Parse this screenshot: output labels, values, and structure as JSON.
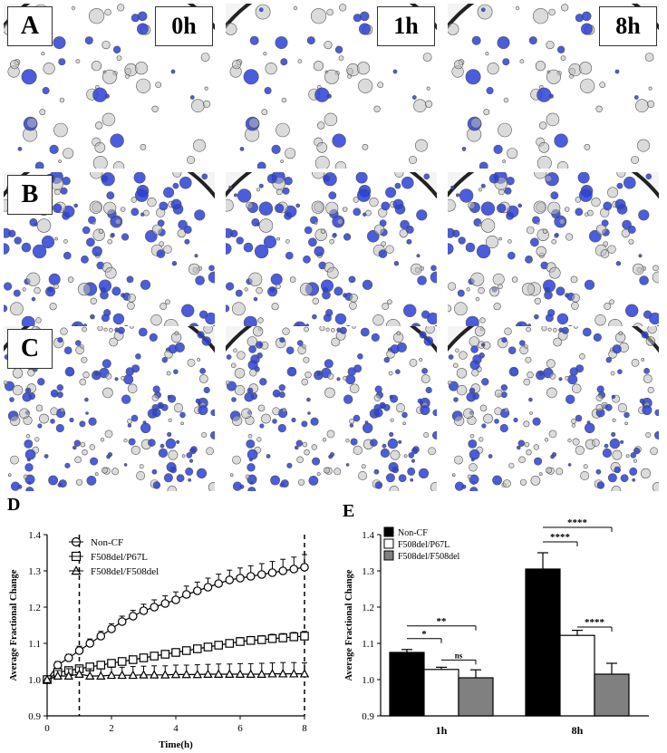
{
  "microscopy": {
    "rows": [
      {
        "label": "A",
        "dots": "sparse"
      },
      {
        "label": "B",
        "dots": "dense"
      },
      {
        "label": "C",
        "dots": "small"
      }
    ],
    "time_labels": [
      "0h",
      "1h",
      "8h"
    ],
    "stain_color": "#2b3fd6"
  },
  "panel_d": {
    "letter": "D"
  },
  "panel_e": {
    "letter": "E"
  },
  "chart_data": [
    {
      "type": "line",
      "ylabel": "Average Fractional  Change",
      "xlabel": "Time(h)",
      "xlim": [
        0,
        8
      ],
      "ylim": [
        0.9,
        1.4
      ],
      "xticks": [
        "0",
        "2",
        "4",
        "6",
        "8"
      ],
      "yticks": [
        "0.9",
        "1.0",
        "1.1",
        "1.2",
        "1.3",
        "1.4"
      ],
      "vlines": [
        1,
        8
      ],
      "legend_position": "top-left",
      "x": [
        0,
        0.33,
        0.67,
        1,
        1.33,
        1.67,
        2,
        2.33,
        2.67,
        3,
        3.33,
        3.67,
        4,
        4.33,
        4.67,
        5,
        5.33,
        5.67,
        6,
        6.33,
        6.67,
        7,
        7.33,
        7.67,
        8
      ],
      "series": [
        {
          "name": "Non-CF",
          "marker": "circle",
          "values": [
            1.0,
            1.04,
            1.06,
            1.08,
            1.1,
            1.12,
            1.14,
            1.16,
            1.175,
            1.19,
            1.2,
            1.21,
            1.22,
            1.235,
            1.245,
            1.255,
            1.265,
            1.275,
            1.28,
            1.285,
            1.29,
            1.295,
            1.3,
            1.305,
            1.31
          ],
          "errors": [
            0.005,
            0.01,
            0.01,
            0.012,
            0.012,
            0.013,
            0.014,
            0.015,
            0.016,
            0.018,
            0.02,
            0.021,
            0.022,
            0.023,
            0.024,
            0.025,
            0.026,
            0.027,
            0.028,
            0.029,
            0.03,
            0.031,
            0.032,
            0.033,
            0.035
          ]
        },
        {
          "name": "F508del/P67L",
          "marker": "square",
          "values": [
            1.0,
            1.02,
            1.025,
            1.03,
            1.035,
            1.04,
            1.045,
            1.05,
            1.055,
            1.06,
            1.065,
            1.07,
            1.075,
            1.08,
            1.085,
            1.09,
            1.095,
            1.1,
            1.105,
            1.108,
            1.11,
            1.113,
            1.115,
            1.118,
            1.12
          ],
          "errors": [
            0.003,
            0.005,
            0.005,
            0.006,
            0.006,
            0.006,
            0.007,
            0.007,
            0.007,
            0.008,
            0.008,
            0.008,
            0.009,
            0.009,
            0.009,
            0.01,
            0.01,
            0.01,
            0.011,
            0.011,
            0.011,
            0.012,
            0.012,
            0.012,
            0.013
          ]
        },
        {
          "name": "F508del/F508del",
          "marker": "triangle",
          "values": [
            1.0,
            1.01,
            1.01,
            1.015,
            1.01,
            1.01,
            1.012,
            1.012,
            1.012,
            1.013,
            1.013,
            1.013,
            1.014,
            1.014,
            1.014,
            1.015,
            1.015,
            1.015,
            1.015,
            1.015,
            1.015,
            1.016,
            1.016,
            1.016,
            1.016
          ],
          "errors": [
            0.003,
            0.015,
            0.02,
            0.02,
            0.02,
            0.02,
            0.022,
            0.022,
            0.024,
            0.024,
            0.025,
            0.025,
            0.026,
            0.026,
            0.027,
            0.027,
            0.028,
            0.028,
            0.029,
            0.029,
            0.03,
            0.03,
            0.031,
            0.031,
            0.03
          ]
        }
      ]
    },
    {
      "type": "bar",
      "ylabel": "Average Fractional  Change",
      "categories": [
        "1h",
        "8h"
      ],
      "ylim": [
        0.9,
        1.4
      ],
      "yticks": [
        "0.9",
        "1.0",
        "1.1",
        "1.2",
        "1.3",
        "1.4"
      ],
      "legend_position": "top-left",
      "series": [
        {
          "name": "Non-CF",
          "color": "#000000",
          "values": [
            1.075,
            1.305
          ],
          "errors": [
            0.008,
            0.045
          ]
        },
        {
          "name": "F508del/P67L",
          "color": "#ffffff",
          "values": [
            1.028,
            1.122
          ],
          "errors": [
            0.006,
            0.014
          ]
        },
        {
          "name": "F508del/F508del",
          "color": "#808080",
          "values": [
            1.005,
            1.015
          ],
          "errors": [
            0.022,
            0.03
          ]
        }
      ],
      "significance": [
        {
          "category": "1h",
          "from": 0,
          "to": 1,
          "label": "*"
        },
        {
          "category": "1h",
          "from": 0,
          "to": 2,
          "label": "**"
        },
        {
          "category": "1h",
          "from": 1,
          "to": 2,
          "label": "ns"
        },
        {
          "category": "8h",
          "from": 0,
          "to": 1,
          "label": "****"
        },
        {
          "category": "8h",
          "from": 0,
          "to": 2,
          "label": "****"
        },
        {
          "category": "8h",
          "from": 1,
          "to": 2,
          "label": "****"
        }
      ]
    }
  ]
}
